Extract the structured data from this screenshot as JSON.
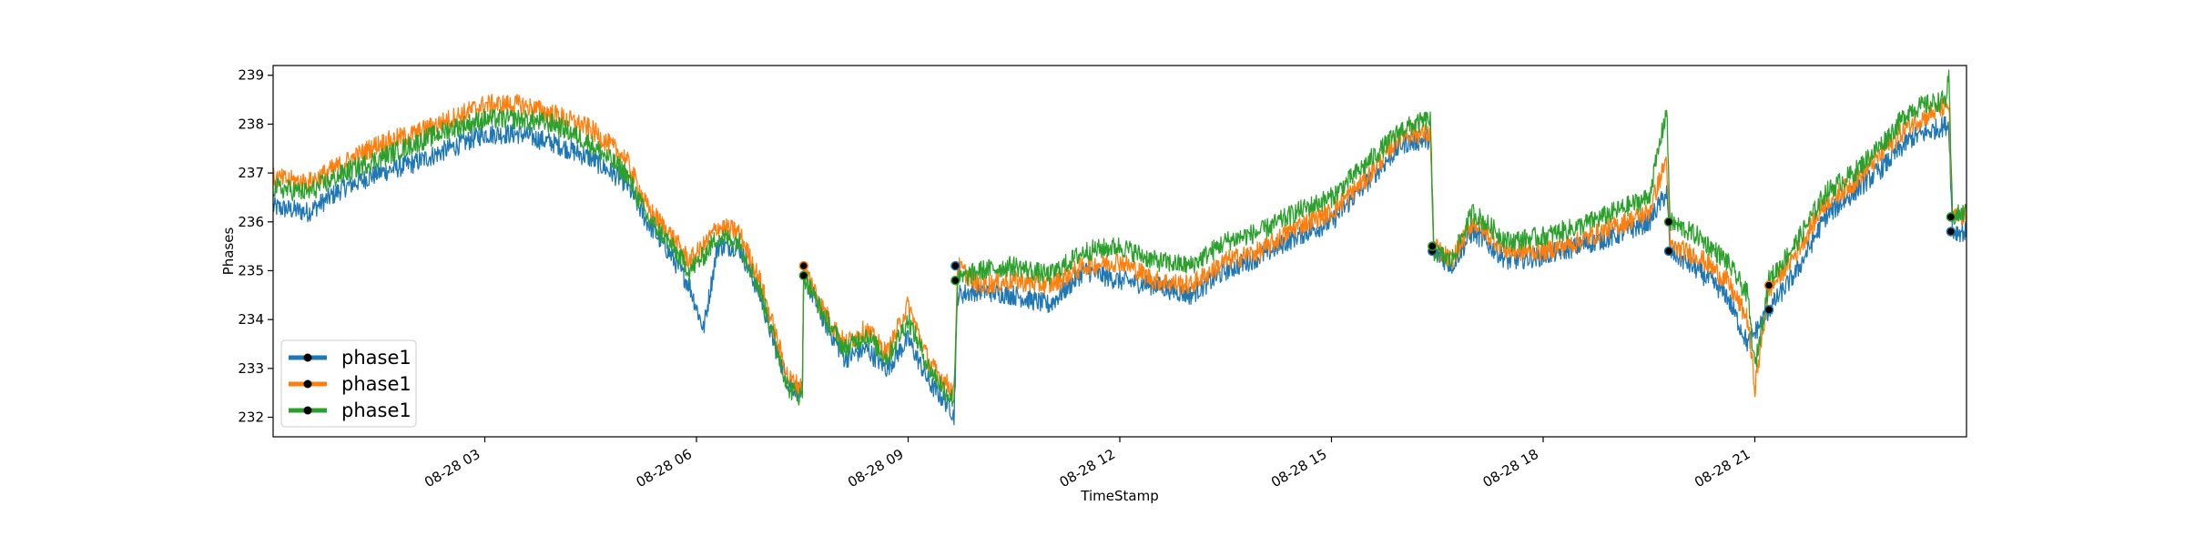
{
  "chart_data": {
    "type": "line",
    "title": "",
    "xlabel": "TimeStamp",
    "ylabel": "Phases",
    "ylim": [
      231.6,
      239.2
    ],
    "xlim_hours": [
      0,
      24
    ],
    "x_tick_hours": [
      3,
      6,
      9,
      12,
      15,
      18,
      21
    ],
    "x_ticks": [
      "08-28 03",
      "08-28 06",
      "08-28 09",
      "08-28 12",
      "08-28 15",
      "08-28 18",
      "08-28 21"
    ],
    "y_ticks": [
      232,
      233,
      234,
      235,
      236,
      237,
      238,
      239
    ],
    "grid": false,
    "legend_position": "lower-left",
    "legend": [
      "phase1",
      "phase1",
      "phase1"
    ],
    "colors": [
      "#1f77b4",
      "#ff7f0e",
      "#2ca02c"
    ],
    "series": [
      {
        "name": "phase1",
        "color": "#1f77b4",
        "x": [
          0,
          0.5,
          1,
          1.5,
          2,
          2.5,
          3,
          3.5,
          4,
          4.5,
          5,
          5.3,
          5.6,
          5.9,
          6.1,
          6.3,
          6.6,
          6.9,
          7.1,
          7.3,
          7.5,
          7.52,
          7.8,
          8.1,
          8.4,
          8.7,
          9.0,
          9.3,
          9.6,
          9.65,
          9.7,
          10,
          10.5,
          11,
          11.5,
          12,
          12.5,
          13,
          13.5,
          14,
          14.5,
          15,
          15.5,
          16,
          16.4,
          16.45,
          16.7,
          17,
          17.5,
          18,
          18.5,
          19,
          19.5,
          19.75,
          19.8,
          20.2,
          20.6,
          20.9,
          21.2,
          21.6,
          22,
          22.4,
          22.8,
          23.2,
          23.75,
          23.8,
          24
        ],
        "values": [
          236.3,
          236.2,
          236.7,
          237.0,
          237.2,
          237.5,
          237.8,
          237.8,
          237.6,
          237.3,
          236.8,
          236.0,
          235.4,
          234.7,
          233.8,
          235.5,
          235.5,
          234.5,
          233.5,
          232.7,
          232.5,
          234.9,
          234.0,
          233.2,
          233.4,
          233.0,
          233.6,
          232.7,
          232.2,
          232.0,
          234.5,
          234.6,
          234.5,
          234.3,
          235.0,
          234.8,
          234.7,
          234.5,
          235.0,
          235.3,
          235.7,
          236.0,
          236.8,
          237.6,
          237.7,
          235.4,
          235.1,
          235.8,
          235.2,
          235.3,
          235.5,
          235.7,
          236.0,
          236.6,
          235.4,
          235.0,
          234.5,
          233.5,
          234.2,
          235.0,
          236.1,
          236.6,
          237.1,
          237.7,
          238.0,
          235.8,
          235.8
        ]
      },
      {
        "name": "phase1",
        "color": "#ff7f0e",
        "x": [
          0,
          0.5,
          1,
          1.5,
          2,
          2.5,
          3,
          3.5,
          4,
          4.5,
          5,
          5.3,
          5.6,
          5.9,
          6.1,
          6.3,
          6.6,
          6.9,
          7.1,
          7.3,
          7.5,
          7.52,
          7.8,
          8.1,
          8.4,
          8.7,
          9.0,
          9.3,
          9.6,
          9.65,
          9.7,
          10,
          10.5,
          11,
          11.5,
          12,
          12.5,
          13,
          13.5,
          14,
          14.5,
          15,
          15.5,
          16,
          16.4,
          16.45,
          16.7,
          17,
          17.5,
          18,
          18.5,
          19,
          19.5,
          19.75,
          19.8,
          20.2,
          20.6,
          20.9,
          21.0,
          21.2,
          21.6,
          22,
          22.4,
          22.8,
          23.2,
          23.75,
          23.8,
          24
        ],
        "values": [
          236.9,
          236.8,
          237.2,
          237.6,
          237.8,
          238.1,
          238.4,
          238.4,
          238.2,
          237.9,
          237.3,
          236.3,
          235.8,
          235.2,
          235.5,
          235.9,
          235.8,
          234.8,
          233.8,
          232.8,
          232.6,
          235.1,
          234.2,
          233.5,
          233.8,
          233.3,
          234.3,
          233.1,
          232.6,
          232.5,
          235.1,
          234.7,
          234.8,
          234.7,
          235.1,
          235.2,
          234.8,
          234.7,
          235.2,
          235.4,
          235.9,
          236.2,
          236.9,
          237.8,
          237.8,
          235.5,
          235.2,
          236.0,
          235.4,
          235.4,
          235.6,
          235.9,
          236.2,
          237.3,
          235.5,
          235.3,
          234.8,
          234.0,
          232.6,
          234.6,
          235.4,
          236.4,
          236.8,
          237.4,
          238.0,
          238.4,
          236.1,
          236.1
        ]
      },
      {
        "name": "phase1",
        "color": "#2ca02c",
        "x": [
          0,
          0.5,
          1,
          1.5,
          2,
          2.5,
          3,
          3.5,
          4,
          4.5,
          5,
          5.3,
          5.6,
          5.9,
          6.1,
          6.3,
          6.6,
          6.9,
          7.1,
          7.3,
          7.5,
          7.52,
          7.8,
          8.1,
          8.4,
          8.7,
          9.0,
          9.3,
          9.6,
          9.65,
          9.7,
          10,
          10.5,
          11,
          11.5,
          12,
          12.5,
          13,
          13.5,
          14,
          14.5,
          15,
          15.5,
          16,
          16.4,
          16.45,
          16.7,
          17,
          17.5,
          18,
          18.5,
          19,
          19.5,
          19.75,
          19.8,
          20.2,
          20.6,
          20.9,
          21.0,
          21.2,
          21.6,
          22,
          22.4,
          22.8,
          23.2,
          23.7,
          23.75,
          23.8,
          24
        ],
        "values": [
          236.7,
          236.6,
          237.0,
          237.3,
          237.6,
          237.9,
          238.1,
          238.1,
          238.0,
          237.6,
          237.0,
          236.1,
          235.6,
          235.0,
          235.3,
          235.7,
          235.6,
          234.6,
          233.6,
          232.6,
          232.4,
          234.9,
          234.1,
          233.4,
          233.7,
          233.2,
          234.0,
          233.0,
          232.4,
          232.4,
          234.8,
          235.0,
          235.1,
          234.9,
          235.4,
          235.5,
          235.2,
          235.1,
          235.6,
          235.8,
          236.2,
          236.5,
          237.2,
          237.9,
          238.1,
          235.4,
          235.2,
          236.2,
          235.6,
          235.7,
          235.9,
          236.2,
          236.5,
          238.3,
          236.0,
          235.7,
          235.2,
          234.5,
          233.0,
          234.8,
          235.6,
          236.6,
          237.0,
          237.6,
          238.3,
          238.5,
          238.9,
          236.1,
          236.2
        ]
      }
    ],
    "markers": [
      {
        "x": 7.52,
        "y": 235.1,
        "color": "#ff7f0e"
      },
      {
        "x": 7.52,
        "y": 234.9,
        "color": "#2ca02c"
      },
      {
        "x": 9.67,
        "y": 235.1,
        "color": "#1f77b4"
      },
      {
        "x": 9.67,
        "y": 234.8,
        "color": "#2ca02c"
      },
      {
        "x": 16.43,
        "y": 235.4,
        "color": "#1f77b4"
      },
      {
        "x": 16.43,
        "y": 235.5,
        "color": "#2ca02c"
      },
      {
        "x": 19.78,
        "y": 236.0,
        "color": "#2ca02c"
      },
      {
        "x": 19.78,
        "y": 235.4,
        "color": "#1f77b4"
      },
      {
        "x": 21.2,
        "y": 234.7,
        "color": "#ff7f0e"
      },
      {
        "x": 21.2,
        "y": 234.2,
        "color": "#1f77b4"
      },
      {
        "x": 23.78,
        "y": 236.1,
        "color": "#2ca02c"
      },
      {
        "x": 23.78,
        "y": 235.8,
        "color": "#1f77b4"
      }
    ]
  }
}
